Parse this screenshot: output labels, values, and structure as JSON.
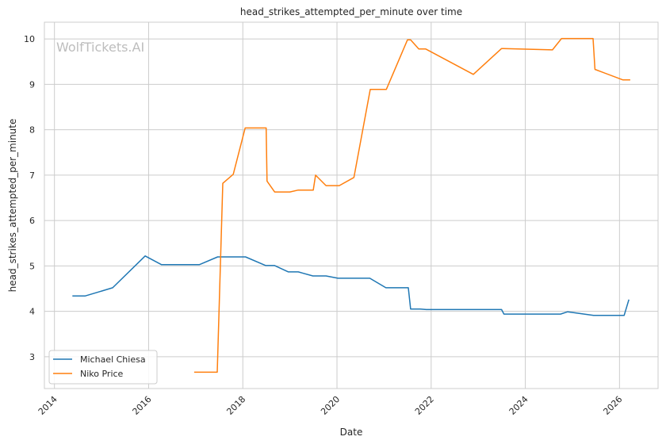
{
  "watermark": "WolfTickets.AI",
  "chart_data": {
    "type": "line",
    "title": "head_strikes_attempted_per_minute over time",
    "xlabel": "Date",
    "ylabel": "head_strikes_attempted_per_minute",
    "xlim": [
      "2013-10-15",
      "2026-10-27"
    ],
    "ylim": [
      2.3,
      10.37
    ],
    "x_ticks": [
      "2014",
      "2016",
      "2018",
      "2020",
      "2022",
      "2024",
      "2026"
    ],
    "y_ticks": [
      3,
      4,
      5,
      6,
      7,
      8,
      9,
      10
    ],
    "grid": true,
    "legend_position": "lower-left",
    "series": [
      {
        "name": "Michael Chiesa",
        "color": "#1f77b4",
        "points": [
          [
            "2014-05-20",
            4.34
          ],
          [
            "2014-08-28",
            4.34
          ],
          [
            "2015-03-28",
            4.52
          ],
          [
            "2015-12-05",
            5.22
          ],
          [
            "2016-04-09",
            5.03
          ],
          [
            "2017-01-30",
            5.03
          ],
          [
            "2017-06-20",
            5.2
          ],
          [
            "2018-01-22",
            5.2
          ],
          [
            "2018-06-28",
            5.01
          ],
          [
            "2018-09-05",
            5.01
          ],
          [
            "2018-12-20",
            4.87
          ],
          [
            "2019-03-07",
            4.87
          ],
          [
            "2019-06-28",
            4.78
          ],
          [
            "2019-10-08",
            4.78
          ],
          [
            "2020-01-08",
            4.73
          ],
          [
            "2020-09-12",
            4.73
          ],
          [
            "2021-01-15",
            4.52
          ],
          [
            "2021-07-08",
            4.52
          ],
          [
            "2021-07-26",
            4.05
          ],
          [
            "2021-10-08",
            4.05
          ],
          [
            "2021-11-24",
            4.04
          ],
          [
            "2023-07-01",
            4.04
          ],
          [
            "2023-07-19",
            3.94
          ],
          [
            "2024-10-01",
            3.94
          ],
          [
            "2024-11-25",
            3.99
          ],
          [
            "2025-06-14",
            3.91
          ],
          [
            "2026-02-06",
            3.91
          ],
          [
            "2026-03-15",
            4.26
          ]
        ]
      },
      {
        "name": "Niko Price",
        "color": "#ff7f0e",
        "points": [
          [
            "2016-12-20",
            2.66
          ],
          [
            "2017-06-17",
            2.66
          ],
          [
            "2017-07-30",
            6.82
          ],
          [
            "2017-10-19",
            7.02
          ],
          [
            "2018-01-19",
            8.04
          ],
          [
            "2018-07-01",
            8.04
          ],
          [
            "2018-07-08",
            6.87
          ],
          [
            "2018-09-05",
            6.63
          ],
          [
            "2019-01-01",
            6.63
          ],
          [
            "2019-03-04",
            6.67
          ],
          [
            "2019-07-01",
            6.67
          ],
          [
            "2019-07-19",
            7.0
          ],
          [
            "2019-10-08",
            6.77
          ],
          [
            "2020-01-19",
            6.77
          ],
          [
            "2020-05-12",
            6.95
          ],
          [
            "2020-09-16",
            8.89
          ],
          [
            "2021-01-19",
            8.89
          ],
          [
            "2021-07-01",
            9.98
          ],
          [
            "2021-07-26",
            9.98
          ],
          [
            "2021-09-27",
            9.78
          ],
          [
            "2021-11-20",
            9.78
          ],
          [
            "2022-11-24",
            9.22
          ],
          [
            "2023-07-01",
            9.79
          ],
          [
            "2024-07-30",
            9.76
          ],
          [
            "2024-10-08",
            10.01
          ],
          [
            "2025-06-10",
            10.01
          ],
          [
            "2025-06-25",
            9.33
          ],
          [
            "2026-01-26",
            9.1
          ],
          [
            "2026-03-25",
            9.1
          ]
        ]
      }
    ]
  }
}
